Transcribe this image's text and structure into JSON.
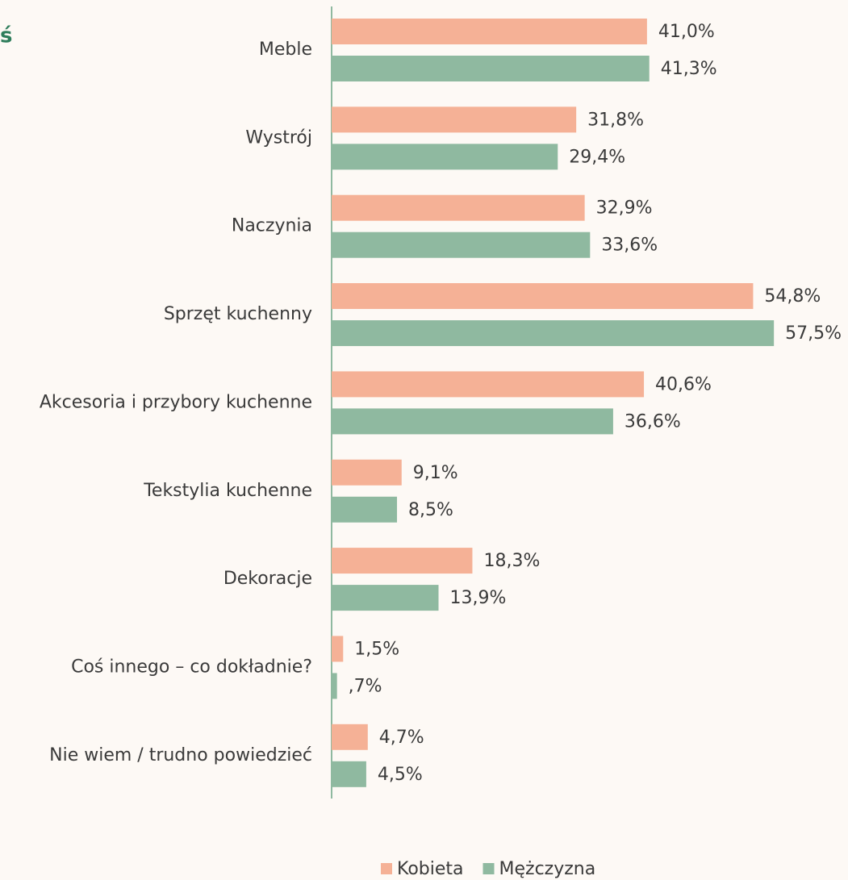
{
  "chart_data": {
    "type": "bar",
    "orientation": "horizontal",
    "title": "ś",
    "categories": [
      "Meble",
      "Wystrój",
      "Naczynia",
      "Sprzęt kuchenny",
      "Akcesoria i przybory kuchenne",
      "Tekstylia kuchenne",
      "Dekoracje",
      "Coś innego – co dokładnie?",
      "Nie wiem / trudno powiedzieć"
    ],
    "series": [
      {
        "name": "Kobieta",
        "color": "#f5b196",
        "values": [
          41.0,
          31.8,
          32.9,
          54.8,
          40.6,
          9.1,
          18.3,
          1.5,
          4.7
        ],
        "value_labels": [
          "41,0%",
          "31,8%",
          "32,9%",
          "54,8%",
          "40,6%",
          "9,1%",
          "18,3%",
          "1,5%",
          "4,7%"
        ]
      },
      {
        "name": "Mężczyzna",
        "color": "#8fb9a0",
        "values": [
          41.3,
          29.4,
          33.6,
          57.5,
          36.6,
          8.5,
          13.9,
          0.7,
          4.5
        ],
        "value_labels": [
          "41,3%",
          "29,4%",
          "33,6%",
          "57,5%",
          "36,6%",
          "8,5%",
          "13,9%",
          ",7%",
          "4,5%"
        ]
      }
    ],
    "xlim": [
      0,
      60
    ],
    "legend": "bottom"
  }
}
